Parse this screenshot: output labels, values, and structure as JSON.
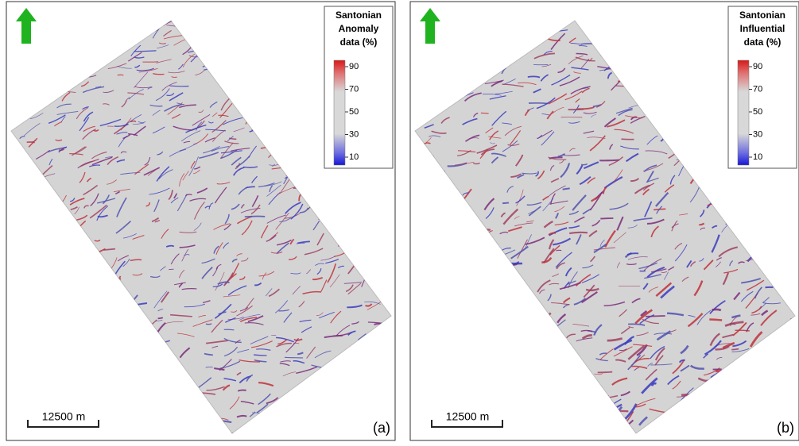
{
  "panels": [
    {
      "legend": {
        "title_lines": [
          "Santonian",
          "Anomaly",
          "data (%)"
        ],
        "ticks": [
          "90",
          "70",
          "50",
          "30",
          "10"
        ]
      },
      "scale_bar": "12500 m",
      "label": "(a)"
    },
    {
      "legend": {
        "title_lines": [
          "Santonian",
          "Influential",
          "data (%)"
        ],
        "ticks": [
          "90",
          "70",
          "50",
          "30",
          "10"
        ]
      },
      "scale_bar": "12500 m",
      "label": "(b)"
    }
  ]
}
